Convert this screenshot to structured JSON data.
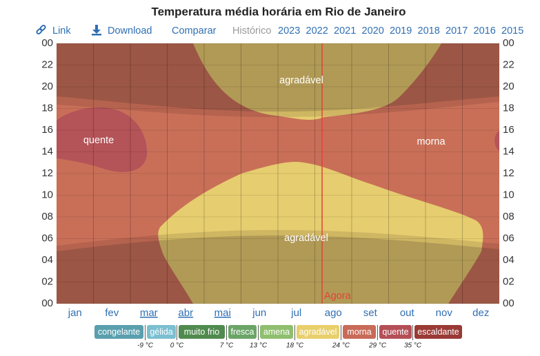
{
  "chart_data": {
    "type": "heatmap",
    "title": "Temperatura média horária em Rio de Janeiro",
    "toolbar": [
      "Link",
      "Download",
      "Comparar"
    ],
    "history_label": "Histórico",
    "years": [
      "2023",
      "2022",
      "2021",
      "2020",
      "2019",
      "2018",
      "2017",
      "2016",
      "2015"
    ],
    "categories": [
      "jan",
      "fev",
      "mar",
      "abr",
      "mai",
      "jun",
      "jul",
      "ago",
      "set",
      "out",
      "nov",
      "dez"
    ],
    "ylim": [
      0,
      24
    ],
    "yticks": [
      {
        "value": 0,
        "label": "00"
      },
      {
        "value": 2,
        "label": "02"
      },
      {
        "value": 4,
        "label": "04"
      },
      {
        "value": 6,
        "label": "06"
      },
      {
        "value": 8,
        "label": "08"
      },
      10,
      12,
      14,
      16,
      18,
      20,
      22,
      {
        "value": 24,
        "label": "00"
      }
    ],
    "grid": true,
    "region_labels": [
      "agradável",
      "quente",
      "morna",
      "agradável"
    ],
    "now_label": "Agora",
    "legend": [
      {
        "name": "congelante",
        "color": "#5a9fae"
      },
      {
        "name": "gélida",
        "color": "#7bbfd1"
      },
      {
        "name": "muito frio",
        "color": "#4f8a4e"
      },
      {
        "name": "fresca",
        "color": "#6aa567"
      },
      {
        "name": "amena",
        "color": "#8fbf6e"
      },
      {
        "name": "agradável",
        "color": "#e8cf6c"
      },
      {
        "name": "morna",
        "color": "#c86b58"
      },
      {
        "name": "quente",
        "color": "#b44f57"
      },
      {
        "name": "escaldante",
        "color": "#9a3a35"
      }
    ],
    "thresholds": [
      {
        "value": -9,
        "label": "-9 °C"
      },
      {
        "value": 0,
        "label": "0 °C"
      },
      {
        "value": 7,
        "label": "7 °C"
      },
      {
        "value": 13,
        "label": "13 °C"
      },
      {
        "value": 18,
        "label": "18 °C"
      },
      {
        "value": 24,
        "label": "24 °C"
      },
      {
        "value": 29,
        "label": "29 °C"
      },
      {
        "value": 35,
        "label": "35 °C"
      }
    ]
  }
}
